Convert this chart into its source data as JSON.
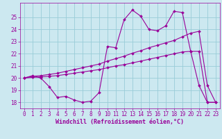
{
  "xlabel": "Windchill (Refroidissement éolien,°C)",
  "background_color": "#cce8f0",
  "grid_color": "#99ccd8",
  "line_color": "#990099",
  "xlim": [
    -0.5,
    23.5
  ],
  "ylim": [
    17.5,
    26.2
  ],
  "xticks": [
    0,
    1,
    2,
    3,
    4,
    5,
    6,
    7,
    8,
    9,
    10,
    11,
    12,
    13,
    14,
    15,
    16,
    17,
    18,
    19,
    20,
    21,
    22,
    23
  ],
  "yticks": [
    18,
    19,
    20,
    21,
    22,
    23,
    24,
    25
  ],
  "line1_x": [
    0,
    1,
    2,
    3,
    4,
    5,
    6,
    7,
    8,
    9,
    10,
    11,
    12,
    13,
    14,
    15,
    16,
    17,
    18,
    19,
    20,
    21,
    22,
    23
  ],
  "line1_y": [
    20.0,
    20.2,
    20.0,
    19.3,
    18.4,
    18.5,
    18.2,
    18.0,
    18.1,
    18.8,
    22.6,
    22.5,
    24.8,
    25.6,
    25.1,
    24.0,
    23.9,
    24.3,
    25.5,
    25.4,
    22.2,
    19.4,
    18.0,
    18.0
  ],
  "line2_x": [
    0,
    1,
    2,
    3,
    4,
    5,
    6,
    7,
    8,
    9,
    10,
    11,
    12,
    13,
    14,
    15,
    16,
    17,
    18,
    19,
    20,
    21,
    22,
    23
  ],
  "line2_y": [
    20.0,
    20.15,
    20.2,
    20.3,
    20.4,
    20.55,
    20.7,
    20.85,
    21.0,
    21.15,
    21.4,
    21.6,
    21.8,
    22.05,
    22.25,
    22.5,
    22.7,
    22.9,
    23.1,
    23.4,
    23.7,
    23.85,
    19.4,
    18.0
  ],
  "line3_x": [
    0,
    1,
    2,
    3,
    4,
    5,
    6,
    7,
    8,
    9,
    10,
    11,
    12,
    13,
    14,
    15,
    16,
    17,
    18,
    19,
    20,
    21,
    22,
    23
  ],
  "line3_y": [
    20.0,
    20.05,
    20.1,
    20.15,
    20.2,
    20.3,
    20.4,
    20.5,
    20.6,
    20.7,
    20.85,
    21.0,
    21.1,
    21.25,
    21.4,
    21.55,
    21.7,
    21.85,
    22.0,
    22.15,
    22.2,
    22.2,
    18.0,
    18.0
  ],
  "marker": "D",
  "marker_size": 2.0,
  "linewidth": 0.8,
  "tick_fontsize": 5.5,
  "xlabel_fontsize": 6.0
}
